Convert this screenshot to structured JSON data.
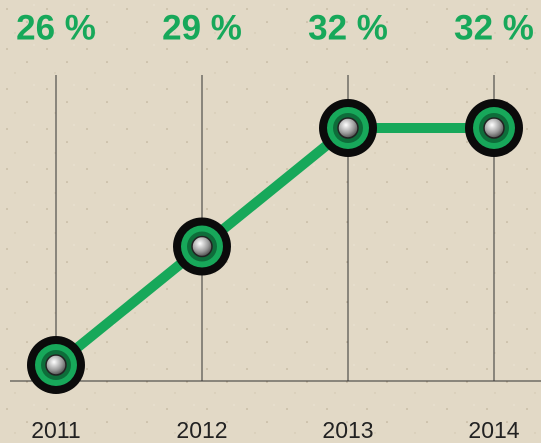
{
  "chart_data": {
    "type": "line",
    "categories": [
      "2011",
      "2012",
      "2013",
      "2014"
    ],
    "values": [
      26,
      29,
      32,
      32
    ],
    "value_labels": [
      "26 %",
      "29 %",
      "32 %",
      "32 %"
    ],
    "color": "#17a85a"
  }
}
